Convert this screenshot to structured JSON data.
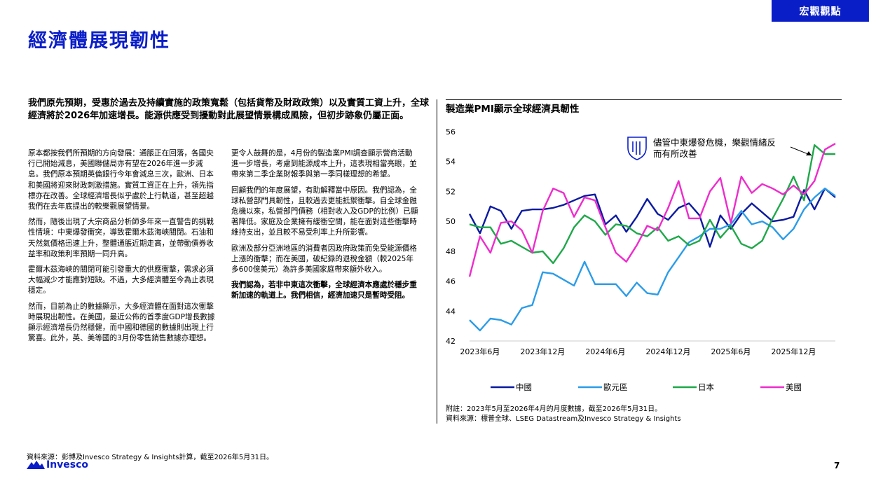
{
  "header": {
    "tag": "宏觀觀點",
    "title": "經濟體展現韌性"
  },
  "lead": "我們原先預期，受惠於過去及持續實施的政策寬鬆（包括貨幣及財政政策）以及實質工資上升，全球經濟將於2026年加速增長。能源供應受到擾動對此展望情景構成風險，但初步跡象仍屬正面。",
  "body": {
    "col1": [
      "原本都按我們所預期的方向發展：通脹正在回落，各國央行已開始減息，美國聯儲局亦有望在2026年進一步減息。我們原本預期英倫銀行今年會減息三次，歐洲、日本和美國將迎來財政刺激措施。實質工資正在上升，領先指標亦在改善。全球經濟增長似乎處於上行軌道，甚至超越我們在去年底提出的較樂觀展望情景。",
      "然而，隨後出現了大宗商品分析師多年來一直警告的挑戰性情境：中東爆發衝突，導致霍爾木茲海峽關閉。石油和天然氣價格迅速上升，整體通脹近期走高，並帶動債券收益率和政策利率預期一同升高。",
      "霍爾木茲海峽的關閉可能引發重大的供應衝擊，需求必須大幅減少才能應對短缺。不過，大多經濟體至今為止表現穩定。",
      "然而，目前為止的數據顯示，大多經濟體在面對這次衝擊時展現出韌性。在美國，最近公佈的首季度GDP增長數據顯示經濟增長仍然穩健，而中國和德國的數據則出現上行驚喜。此外，英、美等國的3月份零售銷售數據亦理想。"
    ],
    "col2": [
      "更令人鼓舞的是，4月份的製造業PMI調查顯示營商活動進一步增長，考慮到能源成本上升，這表現相當亮眼，並帶來第二季企業財報季與第一季同樣理想的希望。",
      "回顧我們的年度展望，有助解釋當中原因。我們認為，全球私營部門具韌性，且較過去更能抵禦衝擊。自全球金融危機以來，私營部門債務（相對收入及GDP的比例）已顯著降低。家庭及企業擁有緩衝空間，能在面對這些衝擊時維持支出，並且較不易受利率上升所影響。",
      "歐洲及部分亞洲地區的消費者因政府政策而免受能源價格上漲的衝擊；而在美國，破紀錄的退稅金額（較2025年多600億美元）為許多美國家庭帶來額外收入。",
      "我們認為，若非中東這次衝擊，全球經濟本應處於穩步重新加速的軌道上。我們相信，經濟加速只是暫時受阻。"
    ]
  },
  "chart_title": "製造業PMI顯示全球經濟具韌性",
  "chart_data": {
    "type": "line",
    "x_labels": [
      "2023年6月",
      "2023年12月",
      "2024年6月",
      "2024年12月",
      "2025年6月",
      "2025年12月"
    ],
    "x_range": [
      "2023-05",
      "2026-04"
    ],
    "ylim": [
      42,
      56
    ],
    "yticks": [
      42,
      44,
      46,
      48,
      50,
      52,
      54,
      56
    ],
    "annotation": "儘管中東爆發危機，樂觀情緒反而有所改善",
    "series": [
      {
        "name": "中國",
        "color": "#0a1aa0",
        "values": [
          50.5,
          49.2,
          51.0,
          50.7,
          49.5,
          50.7,
          50.8,
          50.8,
          50.9,
          51.1,
          51.4,
          51.7,
          51.8,
          49.8,
          50.4,
          49.3,
          50.3,
          51.5,
          50.5,
          50.1,
          50.9,
          51.2,
          50.4,
          48.3,
          50.4,
          49.5,
          50.5,
          51.2,
          50.6,
          50.0,
          50.1,
          50.3,
          52.1,
          50.8,
          52.2,
          51.6
        ]
      },
      {
        "name": "歐元區",
        "color": "#2b9ce8",
        "values": [
          43.4,
          42.7,
          43.5,
          43.4,
          43.1,
          44.2,
          44.4,
          46.6,
          46.5,
          46.1,
          45.7,
          47.3,
          45.8,
          45.8,
          45.8,
          45.0,
          45.9,
          45.2,
          45.1,
          46.6,
          47.6,
          48.6,
          49.0,
          49.5,
          49.5,
          49.8,
          50.7,
          49.8,
          50.0,
          49.6,
          48.8,
          49.5,
          50.8,
          51.6,
          52.2,
          51.7
        ]
      },
      {
        "name": "日本",
        "color": "#1fa84a",
        "values": [
          49.8,
          49.6,
          49.6,
          48.5,
          48.7,
          48.3,
          47.9,
          48.0,
          47.2,
          48.2,
          49.6,
          50.4,
          50.0,
          49.1,
          49.8,
          49.7,
          49.2,
          49.0,
          49.6,
          48.7,
          49.0,
          48.4,
          48.7,
          50.1,
          48.9,
          49.7,
          48.5,
          48.2,
          48.7,
          50.2,
          51.5,
          53.0,
          51.4,
          55.1,
          54.5,
          54.5
        ]
      },
      {
        "name": "美國",
        "color": "#ee2ccc",
        "values": [
          46.3,
          49.0,
          47.9,
          49.9,
          50.0,
          49.4,
          47.9,
          50.7,
          52.2,
          51.9,
          50.3,
          51.6,
          51.4,
          49.6,
          47.9,
          47.3,
          48.4,
          49.7,
          49.4,
          50.9,
          52.7,
          50.2,
          50.2,
          52.0,
          52.9,
          49.9,
          53.0,
          51.9,
          52.5,
          52.2,
          51.8,
          52.4,
          51.8,
          52.7,
          54.8,
          55.2
        ]
      }
    ]
  },
  "chart_note": "附註：2023年5月至2026年4月的月度數據，截至2026年5月31日。",
  "chart_source": "資料來源：標普全球、LSEG Datastream及Invesco Strategy & Insights",
  "footer": {
    "source": "資料來源：彭博及Invesco Strategy & Insights計算，截至2026年5月31日。",
    "logo": "Invesco",
    "page": "7"
  }
}
